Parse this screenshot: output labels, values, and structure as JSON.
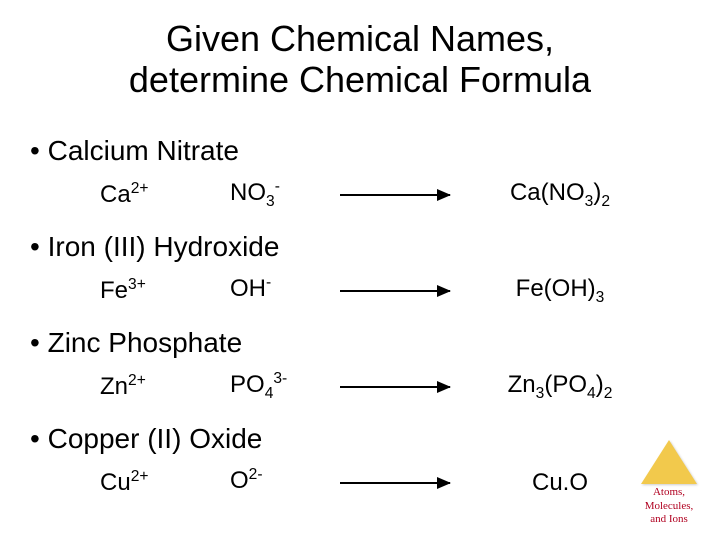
{
  "title_line1": "Given Chemical Names,",
  "title_line2": "determine Chemical Formula",
  "items": [
    {
      "name": "Calcium Nitrate",
      "cation_base": "Ca",
      "cation_sup": "2+",
      "anion_base": "NO",
      "anion_sub": "3",
      "anion_sup": "-",
      "result_html": "Ca(NO<sub>3</sub>)<sub>2</sub>"
    },
    {
      "name": "Iron (III) Hydroxide",
      "cation_base": "Fe",
      "cation_sup": "3+",
      "anion_base": "OH",
      "anion_sub": "",
      "anion_sup": "-",
      "result_html": "Fe(OH)<sub>3</sub>"
    },
    {
      "name": "Zinc Phosphate",
      "cation_base": "Zn",
      "cation_sup": "2+",
      "anion_base": "PO",
      "anion_sub": "4",
      "anion_sup": "3-",
      "result_html": "Zn<sub>3</sub>(PO<sub>4</sub>)<sub>2</sub>"
    },
    {
      "name": "Copper (II) Oxide",
      "cation_base": "Cu",
      "cation_sup": "2+",
      "anion_base": "O",
      "anion_sub": "",
      "anion_sup": "2-",
      "result_html": "Cu.O"
    }
  ],
  "badge": {
    "line1": "Atoms,",
    "line2": "Molecules,",
    "line3": "and Ions"
  },
  "colors": {
    "title": "#000000",
    "text": "#000000",
    "badge_text": "#b00020",
    "triangle": "#f2c94c",
    "background": "#ffffff"
  }
}
